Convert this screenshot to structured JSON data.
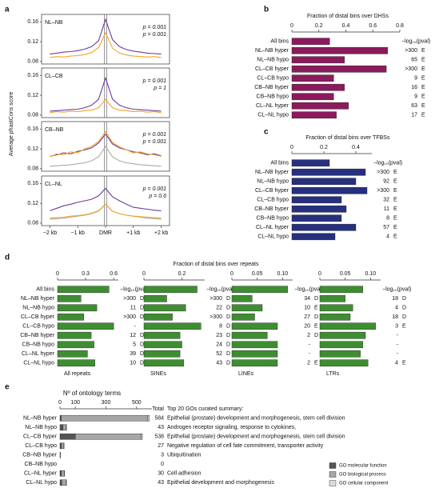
{
  "chart_data": [
    {
      "type": "line",
      "panel": "a",
      "ylabel": "Average phastCons score",
      "x": [
        -2,
        -1.75,
        -1.5,
        -1.25,
        -1,
        -0.75,
        -0.5,
        -0.25,
        0,
        0.25,
        0.5,
        0.75,
        1,
        1.25,
        1.5,
        1.75,
        2
      ],
      "xlim": [
        -2.3,
        2.3
      ],
      "xticks": [
        {
          "value": -2,
          "label": "−2 kb"
        },
        {
          "value": -1,
          "label": "−1 kb"
        },
        {
          "value": 0,
          "label": "DMR"
        },
        {
          "value": 1,
          "label": "+1 kb"
        },
        {
          "value": 2,
          "label": "+2 kb"
        }
      ],
      "ylim": [
        0.075,
        0.175
      ],
      "yticks": [
        0.08,
        0.12,
        0.16
      ],
      "subplots": [
        {
          "title": "NL–NB",
          "series": [
            {
              "color": "#6a3d9a",
              "values": [
                0.095,
                0.097,
                0.099,
                0.1,
                0.102,
                0.105,
                0.11,
                0.122,
                0.165,
                0.124,
                0.11,
                0.104,
                0.101,
                0.099,
                0.097,
                0.096,
                0.095
              ]
            },
            {
              "color": "#f5a32a",
              "values": [
                0.088,
                0.09,
                0.089,
                0.091,
                0.092,
                0.094,
                0.098,
                0.108,
                0.138,
                0.107,
                0.097,
                0.093,
                0.091,
                0.09,
                0.089,
                0.09,
                0.088
              ]
            }
          ],
          "annotations": [
            {
              "text": "p = 0.001",
              "color": "#6a3d9a"
            },
            {
              "text": "p = 0.001",
              "color": "#f5a32a"
            }
          ]
        },
        {
          "title": "CL–CB",
          "series": [
            {
              "color": "#6a3d9a",
              "values": [
                0.088,
                0.089,
                0.09,
                0.091,
                0.092,
                0.095,
                0.1,
                0.112,
                0.155,
                0.112,
                0.1,
                0.095,
                0.092,
                0.091,
                0.09,
                0.089,
                0.088
              ]
            },
            {
              "color": "#f5a32a",
              "values": [
                0.085,
                0.087,
                0.086,
                0.088,
                0.087,
                0.089,
                0.09,
                0.095,
                0.112,
                0.095,
                0.09,
                0.089,
                0.087,
                0.088,
                0.086,
                0.087,
                0.085
              ]
            }
          ],
          "annotations": [
            {
              "text": "p = 0.001",
              "color": "#6a3d9a"
            },
            {
              "text": "p = 1",
              "color": "#f5a32a"
            }
          ]
        },
        {
          "title": "CB–NB",
          "series": [
            {
              "color": "#aaaaaa",
              "values": [
                0.085,
                0.086,
                0.087,
                0.088,
                0.09,
                0.092,
                0.096,
                0.104,
                0.125,
                0.104,
                0.096,
                0.092,
                0.09,
                0.088,
                0.087,
                0.086,
                0.085
              ]
            },
            {
              "color": "#6a3d9a",
              "values": [
                0.105,
                0.108,
                0.112,
                0.11,
                0.115,
                0.118,
                0.122,
                0.132,
                0.15,
                0.13,
                0.122,
                0.118,
                0.114,
                0.112,
                0.108,
                0.11,
                0.106
              ]
            },
            {
              "color": "#f5a32a",
              "values": [
                0.104,
                0.11,
                0.108,
                0.114,
                0.112,
                0.12,
                0.125,
                0.135,
                0.155,
                0.133,
                0.124,
                0.118,
                0.112,
                0.114,
                0.11,
                0.108,
                0.105
              ]
            }
          ],
          "annotations": [
            {
              "text": "p = 0.001",
              "color": "#6a3d9a"
            },
            {
              "text": "p = 0.001",
              "color": "#f5a32a"
            }
          ]
        },
        {
          "title": "CL–NL",
          "series": [
            {
              "color": "#aaaaaa",
              "values": [
                0.088,
                0.089,
                0.09,
                0.092,
                0.094,
                0.096,
                0.099,
                0.104,
                0.118,
                0.104,
                0.099,
                0.096,
                0.094,
                0.092,
                0.09,
                0.089,
                0.088
              ]
            },
            {
              "color": "#6a3d9a",
              "values": [
                0.105,
                0.11,
                0.115,
                0.118,
                0.122,
                0.125,
                0.128,
                0.135,
                0.15,
                0.133,
                0.125,
                0.118,
                0.112,
                0.11,
                0.108,
                0.106,
                0.105
              ]
            },
            {
              "color": "#f5a32a",
              "values": [
                0.09,
                0.091,
                0.092,
                0.094,
                0.095,
                0.097,
                0.1,
                0.105,
                0.118,
                0.104,
                0.099,
                0.096,
                0.094,
                0.093,
                0.092,
                0.091,
                0.09
              ]
            }
          ],
          "annotations": [
            {
              "text": "p = 0.001",
              "color": "#6a3d9a"
            },
            {
              "text": "p = 0.6",
              "color": "#f5a32a"
            }
          ]
        }
      ]
    },
    {
      "type": "bar",
      "panel": "b",
      "title": "Fraction of distal bins over DHSs",
      "categories": [
        "All bins",
        "NL–NB hyper",
        "NL–NB hypo",
        "CL–CB hyper",
        "CL–CB hypo",
        "CB–NB hyper",
        "CB–NB hypo",
        "CL–NL hyper",
        "CL–NL hypo"
      ],
      "values": [
        0.28,
        0.71,
        0.39,
        0.7,
        0.31,
        0.39,
        0.31,
        0.42,
        0.33
      ],
      "color": "#8b1a5c",
      "xlim": [
        0,
        0.8
      ],
      "xticks": [
        0,
        0.2,
        0.4,
        0.6,
        0.8
      ],
      "pval_header": "−log₁₀(pval)",
      "pvals": [
        null,
        ">300",
        "65",
        ">300",
        "9",
        "16",
        "9",
        "63",
        "17"
      ],
      "pval_letters": [
        null,
        "E",
        "E",
        "E",
        "E",
        "E",
        "E",
        "E",
        "E"
      ]
    },
    {
      "type": "bar",
      "panel": "c",
      "title": "Fraction of distal bins over TFBSs",
      "categories": [
        "All bins",
        "NL–NB hyper",
        "NL–NB hypo",
        "CL–CB hyper",
        "CL–CB hypo",
        "CB–NB hyper",
        "CB–NB hypo",
        "CL–NL hyper",
        "CL–NL hypo"
      ],
      "values": [
        0.235,
        0.46,
        0.4,
        0.47,
        0.31,
        0.34,
        0.31,
        0.4,
        0.27
      ],
      "color": "#26307f",
      "xlim": [
        0,
        0.5
      ],
      "xticks": [
        0,
        0.2,
        0.4
      ],
      "pval_header": "−log₁₀(pval)",
      "pvals": [
        null,
        ">300",
        "92",
        ">300",
        "32",
        "11",
        "8",
        "57",
        "4"
      ],
      "pval_letters": [
        null,
        "E",
        "E",
        "E",
        "E",
        "E",
        "E",
        "E",
        "E"
      ]
    },
    {
      "type": "bar",
      "panel": "d",
      "title": "Fraction of distal bins over repeats",
      "color": "#3e8e31",
      "categories": [
        "All bins",
        "NL–NB hyper",
        "NL–NB hypo",
        "CL–CB hyper",
        "CL–CB hypo",
        "CB–NB hyper",
        "CB–NB hypo",
        "CL–NL hyper",
        "CL–NL hypo"
      ],
      "pval_header": "−log₁₀(pval)",
      "subplots": [
        {
          "label": "All repeats",
          "xlim": [
            0,
            0.65
          ],
          "xticks": [
            0,
            0.3,
            0.6
          ],
          "values": [
            0.55,
            0.25,
            0.42,
            0.28,
            0.6,
            0.36,
            0.39,
            0.32,
            0.4
          ],
          "pvals": [
            null,
            ">300",
            "11",
            ">300",
            "-",
            "12",
            "5",
            "39",
            "10"
          ],
          "pval_letters": [
            null,
            "D",
            "D",
            "D",
            null,
            "D",
            "D",
            "D",
            "D"
          ]
        },
        {
          "label": "SINEs",
          "xlim": [
            0,
            0.32
          ],
          "xticks": [
            0,
            0.2
          ],
          "values": [
            0.28,
            0.12,
            0.22,
            0.15,
            0.3,
            0.19,
            0.2,
            0.19,
            0.21
          ],
          "pvals": [
            null,
            ">300",
            "22",
            ">300",
            "8",
            "23",
            "24",
            "52",
            "43"
          ],
          "pval_letters": [
            null,
            "D",
            "D",
            "D",
            "D",
            "D",
            "D",
            "D",
            "D"
          ]
        },
        {
          "label": "LINEs",
          "xlim": [
            0,
            0.12
          ],
          "xticks": [
            0,
            0.05,
            {
              "value": 0.1,
              "label": "0.10"
            }
          ],
          "values": [
            0.11,
            0.04,
            0.06,
            0.045,
            0.09,
            0.07,
            0.09,
            0.09,
            0.09
          ],
          "pvals": [
            null,
            "34",
            "10",
            "27",
            "20",
            "2",
            "-",
            "-",
            "2"
          ],
          "pval_letters": [
            null,
            "D",
            "E",
            "D",
            "E",
            "D",
            null,
            null,
            "E"
          ]
        },
        {
          "label": "LTRs",
          "xlim": [
            0,
            0.12
          ],
          "xticks": [
            0,
            0.05,
            {
              "value": 0.1,
              "label": "0.10"
            }
          ],
          "values": [
            0.085,
            0.05,
            0.065,
            0.06,
            0.11,
            0.09,
            0.085,
            0.08,
            0.095
          ],
          "pvals": [
            null,
            "18",
            "4",
            "18",
            "3",
            "-",
            "-",
            "-",
            "4"
          ],
          "pval_letters": [
            null,
            "D",
            "D",
            "D",
            "E",
            null,
            null,
            null,
            "E"
          ]
        }
      ]
    },
    {
      "type": "stacked-bar",
      "panel": "e",
      "title": "Nº of ontology terms",
      "categories": [
        "NL–NB hyper",
        "NL–NB hypo",
        "CL–CB hyper",
        "CL–CB hypo",
        "CB–NB hyper",
        "CB–NB hypo",
        "CL–NL hyper",
        "CL–NL hypo"
      ],
      "xlim": [
        0,
        600
      ],
      "xticks": [
        0,
        100,
        300,
        500
      ],
      "series": [
        {
          "name": "GO molecular function",
          "color": "#555555",
          "values": [
            8,
            20,
            100,
            10,
            1,
            0,
            10,
            12
          ]
        },
        {
          "name": "GO biological process",
          "color": "#a6a6a6",
          "values": [
            566,
            20,
            430,
            15,
            2,
            0,
            18,
            28
          ]
        },
        {
          "name": "GO cellular component",
          "color": "#dcdcdc",
          "values": [
            10,
            3,
            8,
            2,
            0,
            0,
            2,
            3
          ]
        }
      ],
      "total_header": "Total",
      "totals": [
        584,
        43,
        538,
        27,
        3,
        0,
        30,
        43
      ],
      "summary_header": "Top 20 GOs curated summary:",
      "summaries": [
        "Epithelial (prostate) development and morphogenesis, stem cell division",
        "Androgen receptor signaling, response to cytokines,",
        "Epithelial (prostate) development and morphogenesis, stem cell division",
        "Negative regulation of cell fate commitment, transporter activity",
        "Ubiquitination",
        null,
        "Cell adhesion",
        "Epithelial development and  morphogenesis"
      ]
    }
  ]
}
